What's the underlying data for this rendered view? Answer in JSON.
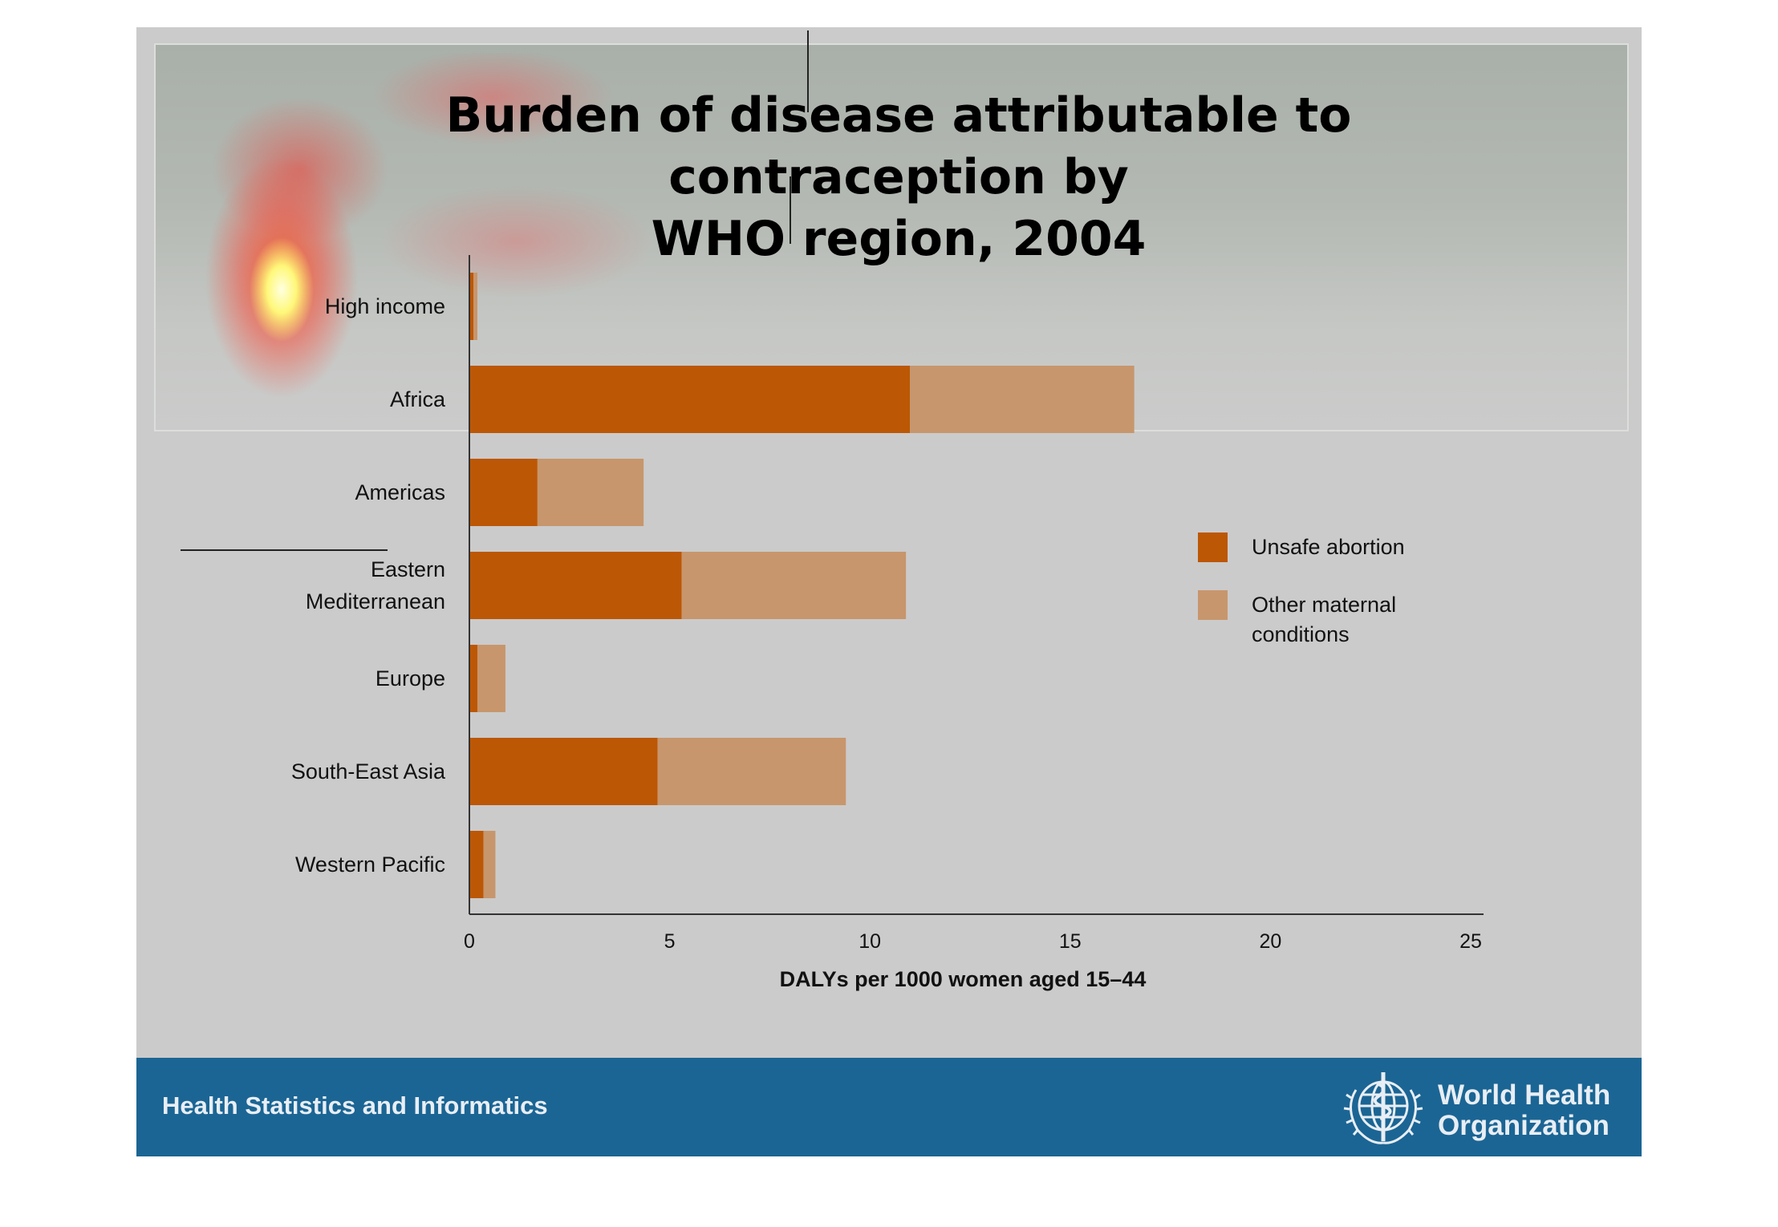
{
  "slide": {
    "title_line1": "Burden of disease attributable to contraception by",
    "title_line2": "WHO region, 2004"
  },
  "footer": {
    "text": "Health Statistics and Informatics",
    "org_line1": "World Health",
    "org_line2": "Organization"
  },
  "colors": {
    "unsafe_abortion": "#bc5705",
    "other_maternal": "#c7966c",
    "footer_band": "#1b6594"
  },
  "chart_data": {
    "type": "bar",
    "orientation": "horizontal",
    "stacked": true,
    "title": "Burden of disease attributable to contraception by WHO region, 2004",
    "xlabel": "DALYs per 1000 women aged 15–44",
    "ylabel": "",
    "xlim": [
      0,
      25
    ],
    "xticks": [
      0,
      5,
      10,
      15,
      20,
      25
    ],
    "grid": false,
    "legend_position": "right",
    "categories": [
      [
        "High income"
      ],
      [
        "Africa"
      ],
      [
        "Americas"
      ],
      [
        "Eastern",
        "Mediterranean"
      ],
      [
        "Europe"
      ],
      [
        "South-East Asia"
      ],
      [
        "Western Pacific"
      ]
    ],
    "series": [
      {
        "name": "Unsafe abortion",
        "values": [
          0.1,
          11.0,
          1.7,
          5.3,
          0.2,
          4.7,
          0.35
        ]
      },
      {
        "name": "Other maternal conditions",
        "name_lines": [
          "Other maternal",
          "conditions"
        ],
        "values": [
          0.1,
          5.6,
          2.65,
          5.6,
          0.7,
          4.7,
          0.3
        ]
      }
    ]
  }
}
